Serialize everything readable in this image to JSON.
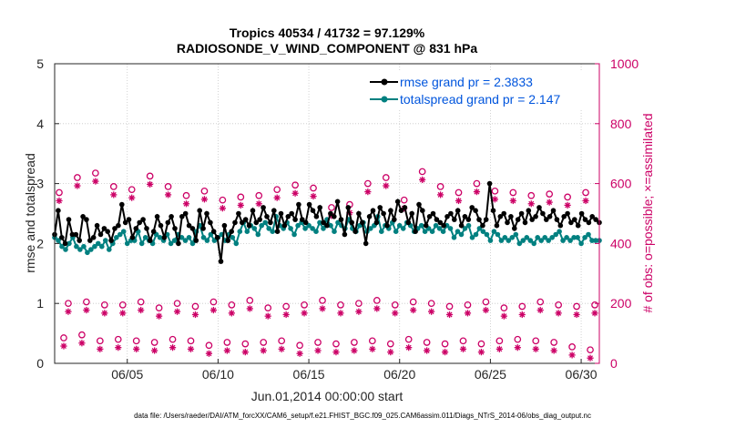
{
  "chart_data": {
    "type": "line",
    "title_line1": "Tropics 40534 / 41732 = 97.129%",
    "title_line2": "RADIOSONDE_V_WIND_COMPONENT @ 831 hPa",
    "xlabel": "Jun.01,2014 00:00:00 start",
    "ylabel_left": "rmse and totalspread",
    "ylabel_right": "# of obs: o=possible; ×=assimilated",
    "footnote": "data file: /Users/raeder/DAI/ATM_forcXX/CAM6_setup/f.e21.FHIST_BGC.f09_025.CAM6assim.011/Diags_NTrS_2014-06/obs_diag_output.nc",
    "xlim": [
      1.0,
      31.0
    ],
    "ylim_left": [
      0,
      5
    ],
    "ylim_right": [
      0,
      1000
    ],
    "x_tick_values": [
      5,
      10,
      15,
      20,
      25,
      30
    ],
    "x_tick_labels": [
      "06/05",
      "06/10",
      "06/15",
      "06/20",
      "06/25",
      "06/30"
    ],
    "y_left_ticks": [
      "0",
      "1",
      "2",
      "3",
      "4",
      "5"
    ],
    "y_right_ticks": [
      "0",
      "200",
      "400",
      "600",
      "800",
      "1000"
    ],
    "legend": [
      "rmse grand pr = 2.3833",
      "totalspread grand pr = 2.147"
    ],
    "colors": {
      "rmse": "#000000",
      "spread": "#008080",
      "obs": "#cc0066",
      "legend_text": "#0055dd"
    },
    "series": [
      {
        "name": "rmse",
        "values": [
          2.15,
          2.55,
          2.1,
          2.0,
          2.4,
          2.15,
          2.15,
          2.05,
          2.45,
          2.4,
          2.05,
          2.1,
          2.3,
          2.15,
          2.25,
          2.2,
          2.05,
          2.25,
          2.3,
          2.65,
          2.35,
          2.4,
          2.1,
          2.25,
          2.35,
          2.4,
          2.25,
          2.05,
          2.2,
          2.45,
          2.3,
          2.1,
          2.35,
          2.45,
          2.25,
          2.0,
          2.45,
          2.5,
          2.3,
          2.25,
          2.05,
          2.55,
          2.25,
          2.5,
          2.35,
          2.2,
          2.1,
          1.7,
          2.3,
          2.05,
          2.2,
          2.35,
          2.5,
          2.35,
          2.4,
          2.3,
          2.55,
          2.35,
          2.4,
          2.6,
          2.45,
          2.35,
          2.55,
          2.2,
          2.5,
          2.3,
          2.45,
          2.5,
          2.4,
          2.65,
          2.4,
          2.35,
          2.65,
          2.55,
          2.45,
          2.6,
          2.35,
          2.3,
          2.5,
          2.45,
          2.7,
          2.4,
          2.15,
          2.6,
          2.35,
          2.2,
          2.5,
          2.35,
          2.0,
          2.45,
          2.55,
          2.35,
          2.6,
          2.5,
          2.3,
          2.55,
          2.4,
          2.7,
          2.55,
          2.6,
          2.35,
          2.5,
          2.2,
          2.65,
          2.55,
          2.3,
          2.45,
          2.5,
          2.4,
          2.35,
          2.3,
          2.45,
          2.5,
          2.4,
          2.55,
          2.3,
          2.45,
          2.4,
          2.6,
          2.55,
          2.4,
          2.3,
          2.4,
          3.0,
          2.55,
          2.3,
          2.45,
          2.5,
          2.35,
          2.45,
          2.25,
          2.4,
          2.5,
          2.35,
          2.55,
          2.4,
          2.45,
          2.6,
          2.5,
          2.4,
          2.45,
          2.55,
          2.4,
          2.3,
          2.45,
          2.5,
          2.35,
          2.4,
          2.3,
          2.5,
          2.4,
          2.35,
          2.45,
          2.4,
          2.35
        ]
      },
      {
        "name": "totalspread",
        "values": [
          2.1,
          2.05,
          1.95,
          1.9,
          2.0,
          2.1,
          1.95,
          1.9,
          1.95,
          1.85,
          1.9,
          1.95,
          2.0,
          1.95,
          2.05,
          1.9,
          2.0,
          2.1,
          2.15,
          2.2,
          2.0,
          2.05,
          2.05,
          2.2,
          2.0,
          2.1,
          2.05,
          2.0,
          2.15,
          2.1,
          2.05,
          2.15,
          2.0,
          2.05,
          2.15,
          2.1,
          2.05,
          2.1,
          2.0,
          2.2,
          2.3,
          2.1,
          2.05,
          2.15,
          2.05,
          2.1,
          2.15,
          2.05,
          2.15,
          2.1,
          2.0,
          2.2,
          2.35,
          2.2,
          2.3,
          2.25,
          2.15,
          2.3,
          2.35,
          2.25,
          2.2,
          2.45,
          2.3,
          2.25,
          2.35,
          2.25,
          2.15,
          2.3,
          2.35,
          2.25,
          2.3,
          2.25,
          2.2,
          2.35,
          2.25,
          2.4,
          2.3,
          2.2,
          2.35,
          2.3,
          2.25,
          2.4,
          2.25,
          2.2,
          2.3,
          2.35,
          2.2,
          2.25,
          2.3,
          2.45,
          2.2,
          2.3,
          2.25,
          2.35,
          2.2,
          2.3,
          2.25,
          2.35,
          2.3,
          2.2,
          2.25,
          2.3,
          2.2,
          2.25,
          2.2,
          2.3,
          2.25,
          2.2,
          2.3,
          2.25,
          2.1,
          2.2,
          2.15,
          2.25,
          2.3,
          2.1,
          2.15,
          2.25,
          2.2,
          2.15,
          2.05,
          2.2,
          2.15,
          2.05,
          2.1,
          2.05,
          2.1,
          2.15,
          2.0,
          2.05,
          2.1,
          2.05,
          2.0,
          2.1,
          2.05,
          2.1,
          2.05,
          2.1,
          2.15,
          2.2,
          2.05,
          2.1,
          2.05,
          2.1,
          2.1,
          2.0,
          2.1,
          2.15,
          2.05,
          2.05,
          2.05
        ]
      },
      {
        "name": "obs_possible_00Z",
        "x": [
          1.25,
          2.25,
          3.25,
          4.25,
          5.25,
          6.25,
          7.25,
          8.25,
          9.25,
          10.25,
          11.25,
          12.25,
          13.25,
          14.25,
          15.25,
          16.25,
          17.25,
          18.25,
          19.25,
          20.25,
          21.25,
          22.25,
          23.25,
          24.25,
          25.25,
          26.25,
          27.25,
          28.25,
          29.25,
          30.25
        ],
        "values": [
          570,
          620,
          635,
          590,
          580,
          625,
          590,
          560,
          575,
          545,
          555,
          560,
          580,
          595,
          585,
          520,
          530,
          600,
          620,
          545,
          640,
          590,
          570,
          600,
          575,
          570,
          560,
          565,
          555,
          570
        ]
      },
      {
        "name": "obs_possible_12Z",
        "x": [
          1.75,
          2.75,
          3.75,
          4.75,
          5.75,
          6.75,
          7.75,
          8.75,
          9.75,
          10.75,
          11.75,
          12.75,
          13.75,
          14.75,
          15.75,
          16.75,
          17.75,
          18.75,
          19.75,
          20.75,
          21.75,
          22.75,
          23.75,
          24.75,
          25.75,
          26.75,
          27.75,
          28.75,
          29.75,
          30.75
        ],
        "values": [
          200,
          205,
          195,
          195,
          205,
          185,
          200,
          190,
          205,
          195,
          210,
          185,
          190,
          195,
          210,
          195,
          200,
          210,
          195,
          205,
          200,
          190,
          195,
          205,
          185,
          190,
          205,
          195,
          190,
          195
        ]
      },
      {
        "name": "obs_possible_06Z",
        "x": [
          1.5,
          2.5,
          3.5,
          4.5,
          5.5,
          6.5,
          7.5,
          8.5,
          9.5,
          10.5,
          11.5,
          12.5,
          13.5,
          14.5,
          15.5,
          16.5,
          17.5,
          18.5,
          19.5,
          20.5,
          21.5,
          22.5,
          23.5,
          24.5,
          25.5,
          26.5,
          27.5,
          28.5,
          29.5,
          30.5
        ],
        "values": [
          85,
          95,
          75,
          80,
          75,
          70,
          80,
          75,
          60,
          70,
          65,
          70,
          75,
          60,
          70,
          65,
          70,
          75,
          65,
          80,
          70,
          65,
          75,
          65,
          75,
          80,
          75,
          70,
          55,
          45
        ]
      }
    ]
  }
}
